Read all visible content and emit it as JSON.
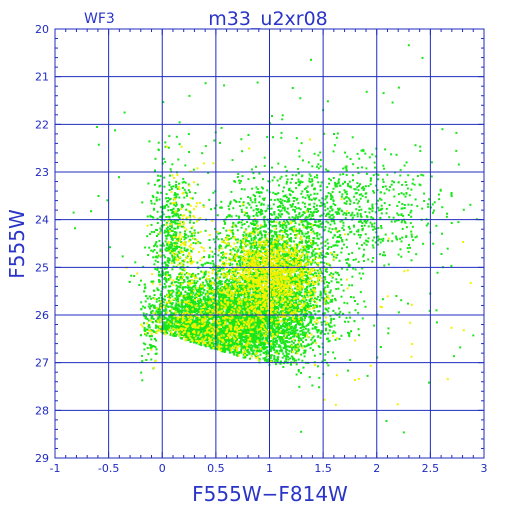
{
  "chart_data": {
    "type": "scatter",
    "title": "m33_u2xr08",
    "chip_label": "WF3",
    "xlabel": "F555W−F814W",
    "ylabel": "F555W",
    "xlim": [
      -1,
      3
    ],
    "ylim": [
      29,
      20
    ],
    "y_inverted": true,
    "grid": true,
    "x_ticks": [
      "-1",
      "-0.5",
      "0",
      "0.5",
      "1",
      "1.5",
      "2",
      "2.5",
      "3"
    ],
    "y_ticks": [
      "20",
      "21",
      "22",
      "23",
      "24",
      "25",
      "26",
      "27",
      "28",
      "29"
    ],
    "colors": {
      "axis": "#1f2bbf",
      "grid": "#1f2bbf",
      "green": "#19e619",
      "yellow": "#f2f200"
    },
    "series_meta": [
      {
        "color_key": "green",
        "approx_points": 9000
      },
      {
        "color_key": "yellow",
        "approx_points": 2000
      }
    ],
    "components": [
      {
        "series": 0,
        "count": 5200,
        "x_mean": 0.6,
        "x_sd": 0.38,
        "y_mean": 26.1,
        "y_sd": 0.45
      },
      {
        "series": 0,
        "count": 2600,
        "x_mean": 1.05,
        "x_sd": 0.28,
        "y_mean": 25.2,
        "y_sd": 0.85
      },
      {
        "series": 0,
        "count": 500,
        "x_mean": 0.1,
        "x_sd": 0.1,
        "y_mean": 24.3,
        "y_sd": 0.75
      },
      {
        "series": 0,
        "count": 700,
        "x_mean": 1.7,
        "x_sd": 0.45,
        "y_mean": 23.8,
        "y_sd": 0.55
      },
      {
        "series": 0,
        "count": 250,
        "x_mean": 1.0,
        "x_sd": 0.9,
        "y_mean": 24.5,
        "y_sd": 1.8
      },
      {
        "series": 1,
        "count": 1200,
        "x_mean": 1.0,
        "x_sd": 0.22,
        "y_mean": 25.2,
        "y_sd": 0.45
      },
      {
        "series": 1,
        "count": 600,
        "x_mean": 0.55,
        "x_sd": 0.35,
        "y_mean": 26.2,
        "y_sd": 0.4
      },
      {
        "series": 1,
        "count": 150,
        "x_mean": 0.2,
        "x_sd": 0.12,
        "y_mean": 24.4,
        "y_sd": 0.7
      },
      {
        "series": 1,
        "count": 60,
        "x_mean": 1.3,
        "x_sd": 0.8,
        "y_mean": 25.5,
        "y_sd": 1.4
      }
    ],
    "main_sequence_edge": {
      "left_x": -0.05,
      "left_y": 26.3,
      "right_x": 1.05,
      "right_y": 27.05
    }
  }
}
